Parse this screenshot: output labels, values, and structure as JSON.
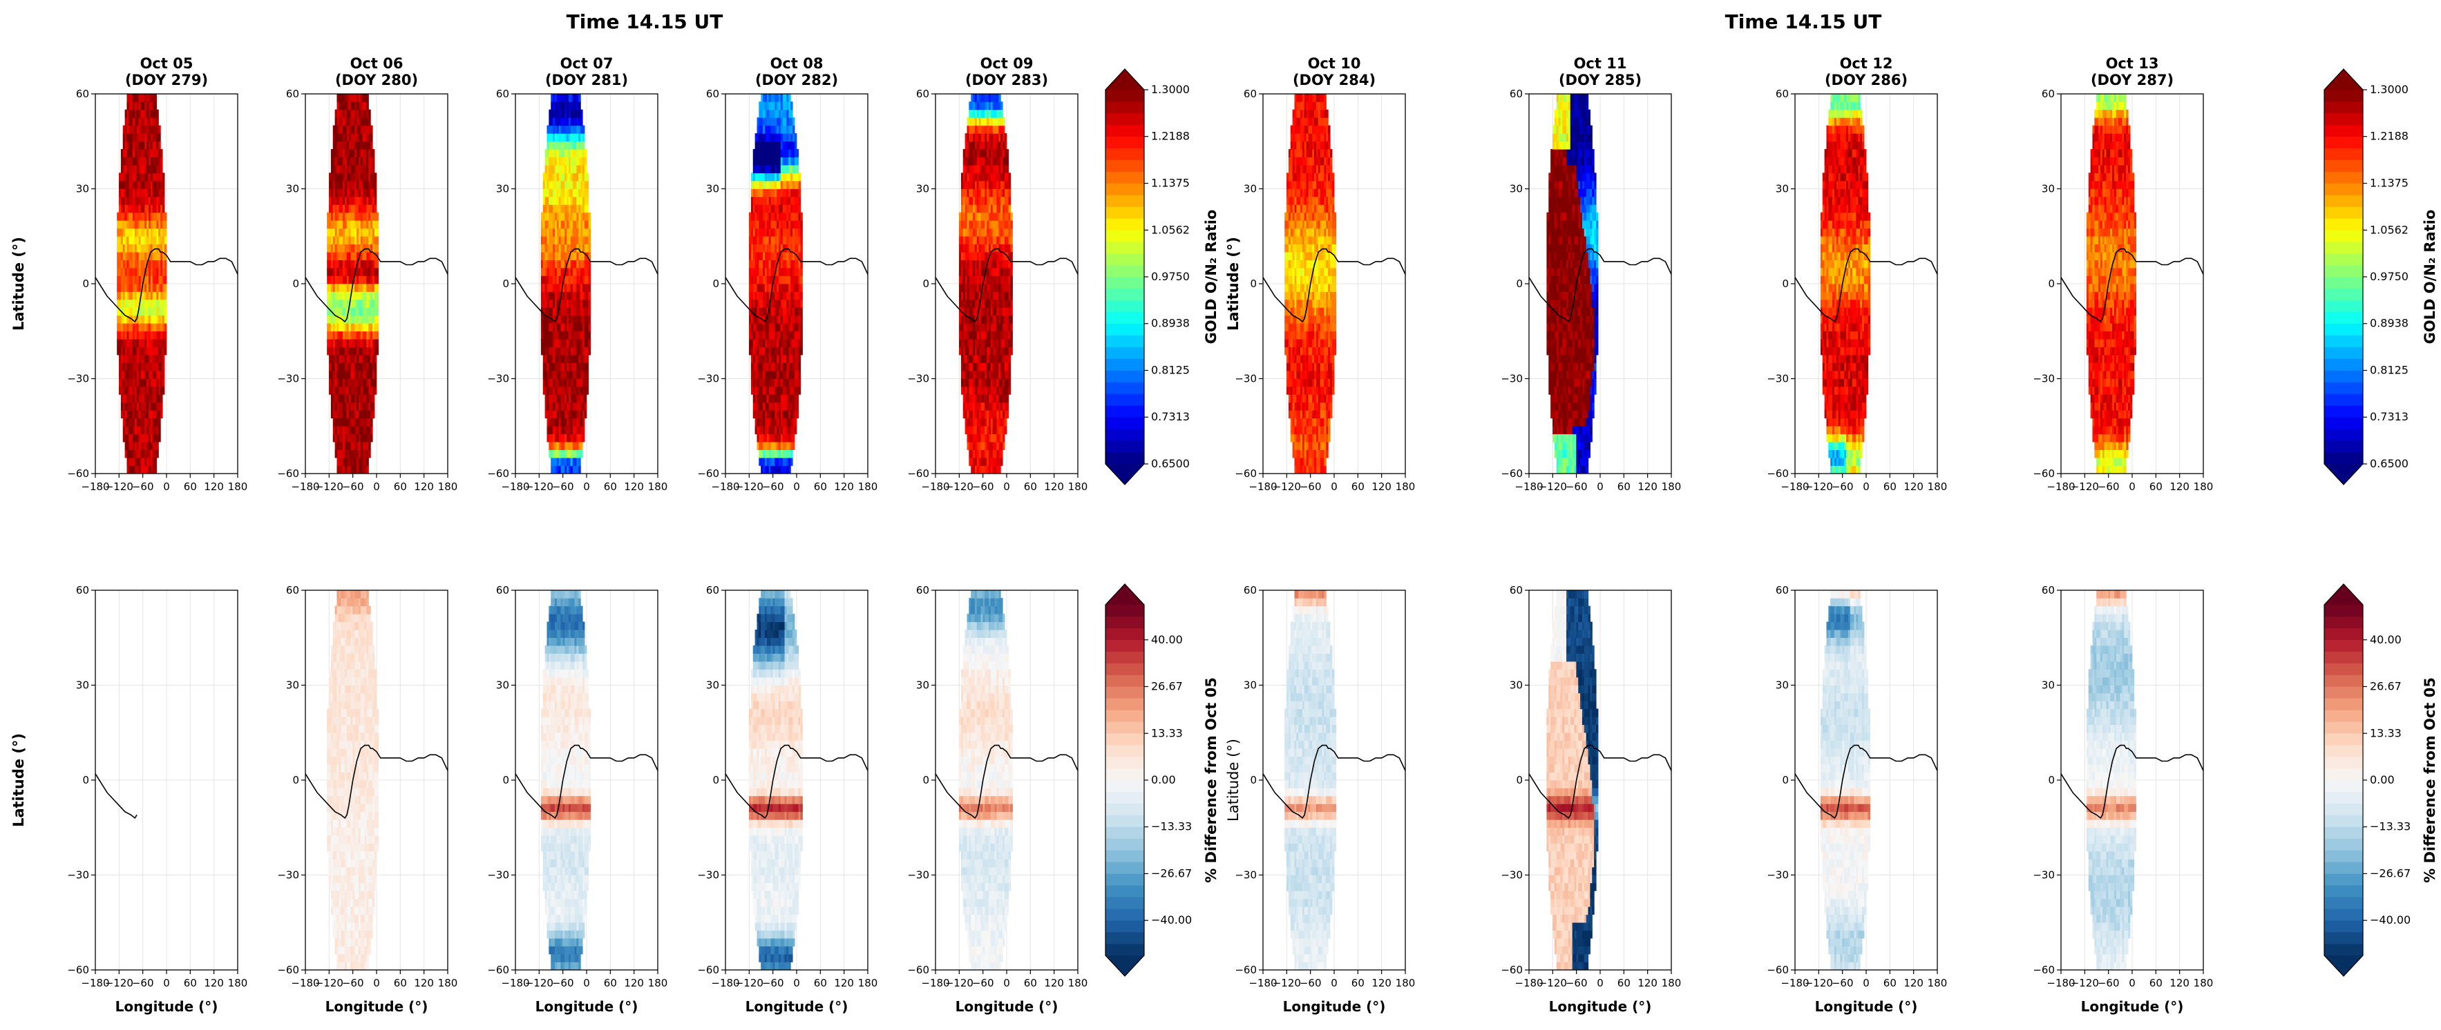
{
  "figure": {
    "group_titles": [
      "Time 14.15 UT",
      "Time 14.15 UT"
    ],
    "xlabel": "Longitude (°)",
    "ylabel_top": "Latitude (°)",
    "ylabel_bottom": "Latitude (°)",
    "colorbar_top_label": "GOLD O/N₂ Ratio",
    "colorbar_bottom_label": "% Difference from Oct 05"
  },
  "panels": [
    {
      "date": "Oct 05",
      "doy": "(DOY 279)"
    },
    {
      "date": "Oct 06",
      "doy": "(DOY 280)"
    },
    {
      "date": "Oct 07",
      "doy": "(DOY 281)"
    },
    {
      "date": "Oct 08",
      "doy": "(DOY 282)"
    },
    {
      "date": "Oct 09",
      "doy": "(DOY 283)"
    },
    {
      "date": "Oct 10",
      "doy": "(DOY 284)"
    },
    {
      "date": "Oct 11",
      "doy": "(DOY 285)"
    },
    {
      "date": "Oct 12",
      "doy": "(DOY 286)"
    },
    {
      "date": "Oct 13",
      "doy": "(DOY 287)"
    }
  ],
  "chart_data": [
    {
      "type": "heatmap",
      "name": "GOLD O/N2 ratio maps",
      "xlabel": "Longitude (°)",
      "ylabel": "Latitude (°)",
      "xlim": [
        -180,
        180
      ],
      "ylim": [
        -60,
        60
      ],
      "xticks": [
        -180,
        -120,
        -60,
        0,
        60,
        120,
        180
      ],
      "yticks": [
        -60,
        -30,
        0,
        30,
        60
      ],
      "colorbar": {
        "label": "GOLD O/N₂ Ratio",
        "range": [
          0.65,
          1.3
        ],
        "ticks": [
          "0.6500",
          "0.7313",
          "0.8125",
          "0.8938",
          "0.9750",
          "1.0562",
          "1.1375",
          "1.2188",
          "1.3000"
        ],
        "colormap": "jet"
      },
      "dip_equator": {
        "lon": [
          -180,
          -165,
          -150,
          -135,
          -120,
          -105,
          -90,
          -80,
          -75,
          -70,
          -60,
          -50,
          -40,
          -30,
          -20,
          -15,
          -10,
          0,
          10,
          20,
          30,
          45,
          60,
          75,
          90,
          105,
          120,
          135,
          150,
          165,
          180
        ],
        "lat": [
          2,
          -1,
          -4,
          -6,
          -8,
          -10,
          -11,
          -12,
          -11,
          -8,
          0,
          6,
          10,
          11,
          11,
          10,
          10,
          9,
          7,
          7,
          7,
          7,
          7,
          6,
          6,
          7,
          7,
          8,
          8,
          7,
          3
        ]
      },
      "panels": [
        "Oct 05",
        "Oct 06",
        "Oct 07",
        "Oct 08",
        "Oct 09",
        "Oct 10",
        "Oct 11",
        "Oct 12",
        "Oct 13"
      ]
    },
    {
      "type": "heatmap",
      "name": "Percent difference maps",
      "xlabel": "Longitude (°)",
      "ylabel": "Latitude (°)",
      "xlim": [
        -180,
        180
      ],
      "ylim": [
        -60,
        60
      ],
      "xticks": [
        -180,
        -120,
        -60,
        0,
        60,
        120,
        180
      ],
      "yticks": [
        -60,
        -30,
        0,
        30,
        60
      ],
      "colorbar": {
        "label": "% Difference from Oct 05",
        "range": [
          -50,
          50
        ],
        "ticks": [
          "−40.00",
          "−26.67",
          "−13.33",
          "0.00",
          "13.33",
          "26.67",
          "40.00"
        ],
        "colormap": "RdBu_r"
      },
      "panels": [
        "Oct 05",
        "Oct 06",
        "Oct 07",
        "Oct 08",
        "Oct 09",
        "Oct 10",
        "Oct 11",
        "Oct 12",
        "Oct 13"
      ]
    }
  ]
}
